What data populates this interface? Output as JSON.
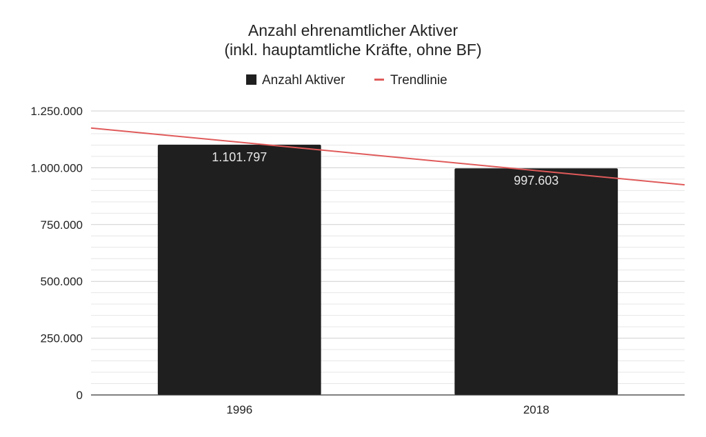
{
  "chart_data": {
    "type": "bar",
    "title": "Anzahl ehrenamtlicher Aktiver",
    "subtitle": "(inkl. hauptamtliche Kräfte, ohne BF)",
    "categories": [
      "1996",
      "2018"
    ],
    "series": [
      {
        "name": "Anzahl Aktiver",
        "values": [
          1101797,
          997603
        ],
        "value_labels": [
          "1.101.797",
          "997.603"
        ],
        "color": "#1f1f1f"
      }
    ],
    "trendline": {
      "name": "Trendlinie",
      "color": "#e05a5a",
      "start_value": 1175000,
      "end_value": 925000
    },
    "ylim": [
      0,
      1250000
    ],
    "yticks": [
      0,
      250000,
      500000,
      750000,
      1000000,
      1250000
    ],
    "ytick_labels": [
      "0",
      "250.000",
      "500.000",
      "750.000",
      "1.000.000",
      "1.250.000"
    ],
    "minor_gridlines_per_major": 5,
    "grid": true,
    "legend_position": "top-center",
    "xlabel": "",
    "ylabel": ""
  }
}
